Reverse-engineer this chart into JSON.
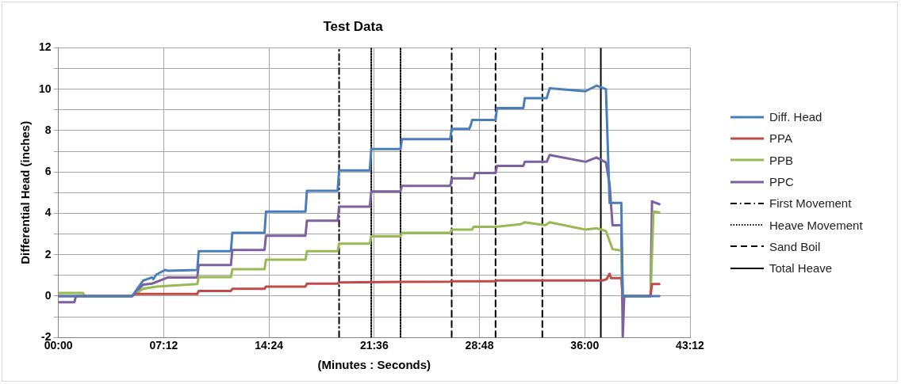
{
  "chart_data": {
    "type": "line",
    "title": "Test Data",
    "xlabel": "(Minutes : Seconds)",
    "ylabel": "Differential Head (inches)",
    "xlim": [
      0,
      43.2
    ],
    "xticks": [
      {
        "value": 0,
        "label": "00:00"
      },
      {
        "value": 7.2,
        "label": "07:12"
      },
      {
        "value": 14.4,
        "label": "14:24"
      },
      {
        "value": 21.6,
        "label": "21:36"
      },
      {
        "value": 28.8,
        "label": "28:48"
      },
      {
        "value": 36,
        "label": "36:00"
      },
      {
        "value": 43.2,
        "label": "43:12"
      }
    ],
    "ylim": [
      -2,
      12
    ],
    "yticks": [
      -2,
      {
        "value": -1,
        "label": null
      },
      0,
      {
        "value": 1,
        "label": null
      },
      2,
      {
        "value": 3,
        "label": null
      },
      4,
      {
        "value": 5,
        "label": null
      },
      6,
      {
        "value": 7,
        "label": null
      },
      8,
      {
        "value": 9,
        "label": null
      },
      10,
      {
        "value": 11,
        "label": null
      },
      12
    ],
    "grid": true,
    "legend": "right",
    "marker": "none",
    "line_style": "solid",
    "series": [
      {
        "name": "Diff. Head",
        "color": "#4a7ebb",
        "x": [
          0,
          5.05,
          5.8,
          6.4,
          6.5,
          6.7,
          7.3,
          7.5,
          9.5,
          9.6,
          11.8,
          11.9,
          14.1,
          14.2,
          16.9,
          17.0,
          19.1,
          19.2,
          21.3,
          21.4,
          23.4,
          23.5,
          26.8,
          26.9,
          28.1,
          28.2,
          28.3,
          29.9,
          30.0,
          31.8,
          31.9,
          33.4,
          33.6,
          36.05,
          36.8,
          37.45,
          37.7,
          38.5,
          38.6,
          41.1
        ],
        "values": [
          0,
          0,
          0.75,
          0.9,
          0.82,
          1.04,
          1.26,
          1.22,
          1.26,
          2.17,
          2.17,
          3.06,
          3.06,
          4.08,
          4.08,
          5.09,
          5.09,
          6.07,
          6.07,
          7.11,
          7.11,
          7.59,
          7.59,
          8.08,
          8.08,
          8.25,
          8.51,
          8.51,
          9.09,
          9.09,
          9.57,
          9.57,
          10.04,
          9.9,
          10.17,
          10.0,
          4.5,
          4.5,
          0,
          0
        ]
      },
      {
        "name": "PPA",
        "color": "#be4b48",
        "x": [
          0,
          5.05,
          5.2,
          9.5,
          9.6,
          11.8,
          11.9,
          14.1,
          14.2,
          16.9,
          17.0,
          19.1,
          19.2,
          26.8,
          26.9,
          29.9,
          30.0,
          37.2,
          37.5,
          37.7,
          37.8,
          38.5,
          38.6,
          40.5,
          40.6,
          41.1
        ],
        "values": [
          0,
          0,
          0.1,
          0.1,
          0.25,
          0.25,
          0.35,
          0.35,
          0.46,
          0.46,
          0.6,
          0.6,
          0.66,
          0.7,
          0.72,
          0.72,
          0.75,
          0.75,
          0.82,
          1.08,
          0.87,
          0.87,
          0,
          0,
          0.58,
          0.58
        ]
      },
      {
        "name": "PPB",
        "color": "#98b954",
        "x": [
          0,
          1.7,
          1.8,
          5.05,
          5.8,
          6.7,
          9.5,
          9.6,
          11.8,
          11.9,
          14.1,
          14.2,
          16.9,
          17.0,
          19.1,
          19.2,
          21.3,
          21.4,
          23.4,
          23.5,
          26.8,
          26.9,
          28.3,
          28.4,
          29.9,
          31.6,
          31.9,
          33.3,
          33.6,
          36.05,
          36.8,
          37.45,
          37.9,
          38.5,
          38.6,
          40.5,
          40.7,
          41.1
        ],
        "values": [
          0.15,
          0.15,
          0,
          0,
          0.35,
          0.46,
          0.58,
          0.92,
          0.92,
          1.3,
          1.3,
          1.76,
          1.76,
          2.17,
          2.17,
          2.53,
          2.53,
          2.89,
          2.89,
          3.06,
          3.06,
          3.21,
          3.21,
          3.35,
          3.35,
          3.47,
          3.57,
          3.42,
          3.57,
          3.21,
          3.28,
          3.14,
          2.27,
          2.2,
          0,
          0,
          4.08,
          4.05
        ]
      },
      {
        "name": "PPC",
        "color": "#7d60a0",
        "x": [
          0,
          1.1,
          1.2,
          5.05,
          5.8,
          6.4,
          7.5,
          9.5,
          9.6,
          11.8,
          11.9,
          14.1,
          14.2,
          16.9,
          17.0,
          19.1,
          19.2,
          21.3,
          21.4,
          23.4,
          23.5,
          26.8,
          26.9,
          28.4,
          28.5,
          29.9,
          30.0,
          31.8,
          31.9,
          33.4,
          33.6,
          36.05,
          36.8,
          37.45,
          37.7,
          37.9,
          38.5,
          38.6,
          38.7,
          40.5,
          40.6,
          41.1
        ],
        "values": [
          -0.3,
          -0.3,
          0,
          0,
          0.55,
          0.6,
          0.9,
          0.9,
          1.5,
          1.5,
          2.23,
          2.23,
          2.92,
          2.92,
          3.64,
          3.64,
          4.32,
          4.32,
          5.06,
          5.06,
          5.33,
          5.33,
          5.69,
          5.69,
          5.95,
          5.95,
          6.29,
          6.29,
          6.49,
          6.49,
          6.82,
          6.49,
          6.7,
          6.46,
          5.4,
          3.42,
          3.42,
          -2,
          0,
          0,
          4.58,
          4.44
        ]
      },
      {
        "name": "First Movement",
        "color": "#000000",
        "line_style": "dashdot",
        "x": [
          19.2,
          19.2
        ],
        "values": [
          -2,
          12
        ]
      },
      {
        "name": "Heave Movement",
        "color": "#000000",
        "line_style": "dotted",
        "x": [
          21.4,
          21.4,
          22.4,
          23.4,
          23.4
        ],
        "values": [
          -2,
          12,
          null,
          -2,
          12
        ]
      },
      {
        "name": "Sand Boil",
        "color": "#000000",
        "line_style": "dashed",
        "x": [
          26.9,
          26.9,
          28.4,
          29.9,
          29.9,
          31.5,
          33.1,
          33.1
        ],
        "values": [
          -2,
          12,
          null,
          -2,
          12,
          null,
          -2,
          12
        ]
      },
      {
        "name": "Total Heave",
        "color": "#000000",
        "line_style": "solid",
        "x": [
          37.1,
          37.1
        ],
        "values": [
          -2,
          12
        ]
      }
    ]
  }
}
